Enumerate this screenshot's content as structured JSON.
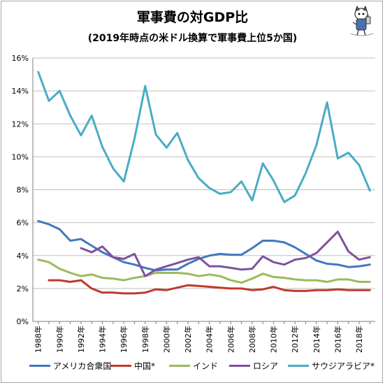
{
  "title": "軍事費の対GDP比",
  "subtitle": "(2019年時点の米ドル換算で軍事費上位5か国)",
  "chart_data": {
    "type": "line",
    "title": "軍事費の対GDP比",
    "subtitle": "(2019年時点の米ドル換算で軍事費上位5か国)",
    "ylim": [
      0,
      16
    ],
    "xlim": [
      1988,
      2019
    ],
    "grid": "horizontal",
    "legend_placement": "bottom",
    "y_ticks": [
      "0%",
      "2%",
      "4%",
      "6%",
      "8%",
      "10%",
      "12%",
      "14%",
      "16%"
    ],
    "x_ticks": [
      "1988年",
      "1990年",
      "1992年",
      "1994年",
      "1996年",
      "1998年",
      "2000年",
      "2002年",
      "2004年",
      "2006年",
      "2008年",
      "2010年",
      "2012年",
      "2014年",
      "2016年",
      "2018年"
    ],
    "x": [
      1988,
      1989,
      1990,
      1991,
      1992,
      1993,
      1994,
      1995,
      1996,
      1997,
      1998,
      1999,
      2000,
      2001,
      2002,
      2003,
      2004,
      2005,
      2006,
      2007,
      2008,
      2009,
      2010,
      2011,
      2012,
      2013,
      2014,
      2015,
      2016,
      2017,
      2018,
      2019
    ],
    "series": [
      {
        "name": "アメリカ合衆国",
        "color": "#4178be",
        "values": [
          6.1,
          5.9,
          5.6,
          4.9,
          5.0,
          4.6,
          4.2,
          3.9,
          3.6,
          3.45,
          3.25,
          3.1,
          3.15,
          3.15,
          3.5,
          3.8,
          4.0,
          4.1,
          4.05,
          4.05,
          4.45,
          4.9,
          4.9,
          4.8,
          4.5,
          4.1,
          3.7,
          3.5,
          3.45,
          3.3,
          3.35,
          3.45
        ]
      },
      {
        "name": "中国*",
        "color": "#c0392b",
        "values": [
          null,
          2.5,
          2.5,
          2.4,
          2.5,
          2.0,
          1.75,
          1.75,
          1.7,
          1.7,
          1.75,
          1.95,
          1.9,
          2.05,
          2.2,
          2.15,
          2.1,
          2.05,
          2.0,
          2.0,
          1.9,
          1.95,
          2.1,
          1.9,
          1.85,
          1.85,
          1.9,
          1.9,
          1.95,
          1.9,
          1.9,
          1.9
        ]
      },
      {
        "name": "インド",
        "color": "#9bbb59",
        "values": [
          3.75,
          3.6,
          3.2,
          2.95,
          2.75,
          2.85,
          2.65,
          2.6,
          2.5,
          2.65,
          2.75,
          2.95,
          2.95,
          2.95,
          2.9,
          2.75,
          2.85,
          2.75,
          2.5,
          2.35,
          2.6,
          2.9,
          2.7,
          2.65,
          2.55,
          2.5,
          2.5,
          2.4,
          2.55,
          2.55,
          2.4,
          2.4
        ]
      },
      {
        "name": "ロシア",
        "color": "#7f519f",
        "values": [
          null,
          null,
          null,
          null,
          4.45,
          4.2,
          4.55,
          3.9,
          3.8,
          4.1,
          2.75,
          3.15,
          3.35,
          3.55,
          3.75,
          3.9,
          3.35,
          3.35,
          3.25,
          3.15,
          3.2,
          3.95,
          3.6,
          3.45,
          3.75,
          3.85,
          4.15,
          4.8,
          5.45,
          4.25,
          3.75,
          3.9
        ]
      },
      {
        "name": "サウジアラビア*",
        "color": "#4aacc6",
        "values": [
          15.15,
          13.4,
          14.0,
          12.5,
          11.3,
          12.5,
          10.6,
          9.3,
          8.5,
          11.1,
          14.3,
          11.35,
          10.55,
          11.45,
          9.8,
          8.7,
          8.1,
          7.75,
          7.85,
          8.5,
          7.35,
          9.6,
          8.55,
          7.25,
          7.65,
          9.0,
          10.7,
          13.3,
          9.9,
          10.25,
          9.5,
          7.95
        ]
      }
    ]
  }
}
